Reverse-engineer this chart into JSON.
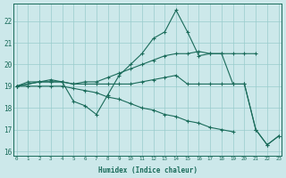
{
  "xlabel": "Humidex (Indice chaleur)",
  "bg_color": "#cce8ea",
  "line_color": "#1a6b5a",
  "grid_color": "#99cccc",
  "xlim": [
    -0.3,
    23.3
  ],
  "ylim": [
    15.8,
    22.8
  ],
  "yticks": [
    16,
    17,
    18,
    19,
    20,
    21,
    22
  ],
  "xticks": [
    0,
    1,
    2,
    3,
    4,
    5,
    6,
    7,
    8,
    9,
    10,
    11,
    12,
    13,
    14,
    15,
    16,
    17,
    18,
    19,
    20,
    21,
    22,
    23
  ],
  "lines": [
    {
      "x": [
        0,
        1,
        2,
        3,
        4,
        5,
        6,
        7,
        8,
        9,
        10,
        11,
        12,
        13,
        14,
        15,
        16,
        17,
        18,
        19,
        20,
        21,
        22,
        23
      ],
      "y": [
        19.0,
        19.2,
        19.2,
        19.3,
        19.2,
        18.3,
        18.1,
        17.7,
        18.6,
        19.5,
        20.0,
        20.5,
        21.2,
        21.5,
        22.5,
        21.5,
        20.4,
        20.5,
        20.5,
        19.1,
        19.1,
        17.0,
        16.3,
        16.7
      ]
    },
    {
      "x": [
        0,
        1,
        2,
        3,
        4,
        5,
        6,
        7,
        8,
        9,
        10,
        11,
        12,
        13,
        14,
        15,
        16,
        17,
        18,
        19,
        20,
        21,
        22,
        23
      ],
      "y": [
        19.0,
        19.1,
        19.2,
        19.2,
        19.2,
        19.1,
        19.2,
        19.2,
        19.4,
        19.6,
        19.8,
        20.0,
        20.2,
        20.4,
        20.5,
        20.5,
        20.6,
        20.5,
        20.5,
        20.5,
        20.5,
        20.5,
        null,
        null
      ]
    },
    {
      "x": [
        0,
        1,
        2,
        3,
        4,
        5,
        6,
        7,
        8,
        9,
        10,
        11,
        12,
        13,
        14,
        15,
        16,
        17,
        18,
        19,
        20,
        21,
        22,
        23
      ],
      "y": [
        19.0,
        19.1,
        19.2,
        19.2,
        19.2,
        19.1,
        19.1,
        19.1,
        19.1,
        19.1,
        19.1,
        19.2,
        19.3,
        19.4,
        19.5,
        19.1,
        19.1,
        19.1,
        19.1,
        19.1,
        19.1,
        17.0,
        16.3,
        16.7
      ]
    },
    {
      "x": [
        0,
        1,
        2,
        3,
        4,
        5,
        6,
        7,
        8,
        9,
        10,
        11,
        12,
        13,
        14,
        15,
        16,
        17,
        18,
        19,
        20,
        21,
        22,
        23
      ],
      "y": [
        19.0,
        19.0,
        19.0,
        19.0,
        19.0,
        18.9,
        18.8,
        18.7,
        18.5,
        18.4,
        18.2,
        18.0,
        17.9,
        17.7,
        17.6,
        17.4,
        17.3,
        17.1,
        17.0,
        16.9,
        null,
        null,
        null,
        null
      ]
    }
  ]
}
